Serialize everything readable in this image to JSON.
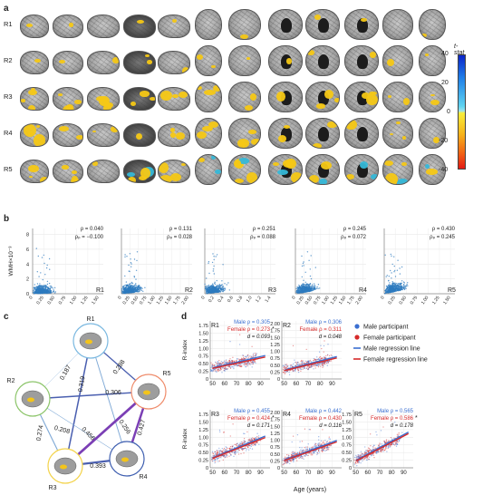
{
  "panels": {
    "a": "a",
    "b": "b",
    "c": "c",
    "d": "d"
  },
  "panel_a": {
    "rows": [
      "R1",
      "R2",
      "R3",
      "R4",
      "R5"
    ],
    "colorbar": {
      "title": "t-stat",
      "ticks": [
        "40",
        "20",
        "0",
        "-20",
        "-40"
      ]
    }
  },
  "panel_b": {
    "ylabel": "WMH×10⁻³",
    "yticks": [
      "0",
      "2",
      "4",
      "6",
      "8"
    ],
    "subplots": [
      {
        "label": "R1",
        "rho": "ρ = 0.040",
        "rhop": "ρₚ = −0.100",
        "xticks": [
          "0",
          "0.25",
          "0.50",
          "0.75",
          "1.00",
          "1.25",
          "1.50"
        ],
        "xmax": 1.6
      },
      {
        "label": "R2",
        "rho": "ρ = 0.131",
        "rhop": "ρₚ = 0.028",
        "xticks": [
          "0",
          "0.25",
          "0.50",
          "0.75",
          "1.00",
          "1.25",
          "1.50",
          "1.75",
          "2.00"
        ],
        "xmax": 2.1
      },
      {
        "label": "R3",
        "rho": "ρ = 0.251",
        "rhop": "ρₚ = 0.088",
        "xticks": [
          "0",
          "0.2",
          "0.4",
          "0.6",
          "0.8",
          "1.0",
          "1.2",
          "1.4"
        ],
        "xmax": 1.5
      },
      {
        "label": "R4",
        "rho": "ρ = 0.245",
        "rhop": "ρₚ = 0.072",
        "xticks": [
          "0",
          "0.25",
          "0.50",
          "0.75",
          "1.00",
          "1.25",
          "1.50",
          "1.75",
          "2.00"
        ],
        "xmax": 2.1
      },
      {
        "label": "R5",
        "rho": "ρ = 0.430",
        "rhop": "ρₚ = 0.245",
        "xticks": [
          "0",
          "0.25",
          "0.50",
          "0.75",
          "1.00",
          "1.25",
          "1.50"
        ],
        "xmax": 1.6
      }
    ]
  },
  "panel_c": {
    "nodes": [
      {
        "label": "R1",
        "color": "#7ab8e0"
      },
      {
        "label": "R2",
        "color": "#8cc56a"
      },
      {
        "label": "R3",
        "color": "#f3d34a"
      },
      {
        "label": "R4",
        "color": "#3f5fb0"
      },
      {
        "label": "R5",
        "color": "#ef8c6b"
      }
    ],
    "edges": [
      {
        "from": 0,
        "to": 1,
        "value": "0.187"
      },
      {
        "from": 0,
        "to": 4,
        "value": "0.288"
      },
      {
        "from": 0,
        "to": 2,
        "value": "0.319"
      },
      {
        "from": 0,
        "to": 3,
        "value": "0.256"
      },
      {
        "from": 1,
        "to": 4,
        "value": "0.306"
      },
      {
        "from": 1,
        "to": 3,
        "value": "0.208"
      },
      {
        "from": 1,
        "to": 2,
        "value": "0.274"
      },
      {
        "from": 2,
        "to": 4,
        "value": "0.456"
      },
      {
        "from": 2,
        "to": 3,
        "value": "0.393"
      },
      {
        "from": 3,
        "to": 4,
        "value": "0.427"
      }
    ]
  },
  "panel_d": {
    "ylabel": "R-index",
    "xlabel": "Age (years)",
    "xticks": [
      "50",
      "60",
      "70",
      "80",
      "90"
    ],
    "legend": [
      "Male participant",
      "Female participant",
      "Male regression line",
      "Female regression line"
    ],
    "colors": {
      "male": "#3a6fd1",
      "female": "#d62a2a"
    },
    "subplots": [
      {
        "label": "R1",
        "male": "Male ρ = 0.305",
        "female": "Female ρ = 0.273",
        "d": "d = 0.093",
        "star": "*",
        "yticks": [
          "0",
          "0.25",
          "0.50",
          "0.75",
          "1.00",
          "1.25",
          "1.50",
          "1.75"
        ],
        "ymax": 1.9
      },
      {
        "label": "R2",
        "male": "Male ρ = 0.306",
        "female": "Female ρ = 0.311",
        "d": "d = 0.048",
        "star": "",
        "yticks": [
          "0",
          "0.25",
          "0.50",
          "0.75",
          "1.00",
          "1.25",
          "1.50",
          "1.75",
          "2.00"
        ],
        "ymax": 2.1
      },
      {
        "label": "R3",
        "male": "Male ρ = 0.455",
        "female": "Female ρ = 0.424",
        "d": "d = 0.171",
        "star": "*",
        "yticks": [
          "0",
          "0.25",
          "0.50",
          "0.75",
          "1.00",
          "1.25",
          "1.50",
          "1.75"
        ],
        "ymax": 1.9
      },
      {
        "label": "R4",
        "male": "Male ρ = 0.442",
        "female": "Female ρ = 0.430",
        "d": "d = 0.116",
        "star": "",
        "yticks": [
          "0",
          "0.25",
          "0.50",
          "0.75",
          "1.00",
          "1.25",
          "1.50",
          "1.75",
          "2.00"
        ],
        "ymax": 2.1
      },
      {
        "label": "R5",
        "male": "Male ρ = 0.565",
        "female": "Female ρ = 0.586",
        "d": "d = 0.178",
        "star": "*",
        "yticks": [
          "0",
          "0.25",
          "0.50",
          "0.75",
          "1.00",
          "1.25",
          "1.50",
          "1.75"
        ],
        "ymax": 1.9
      }
    ]
  }
}
